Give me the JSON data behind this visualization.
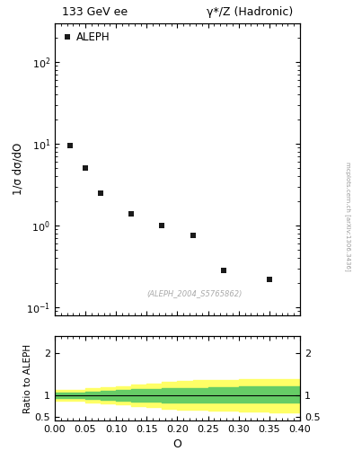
{
  "title_left": "133 GeV ee",
  "title_right": "γ*/Z (Hadronic)",
  "xlabel": "O",
  "ylabel_main": "1/σ dσ/dO",
  "ylabel_ratio": "Ratio to ALEPH",
  "watermark": "(ALEPH_2004_S5765862)",
  "side_label": "mcplots.cern.ch [arXiv:1306.3436]",
  "legend_label": "ALEPH",
  "data_x": [
    0.025,
    0.05,
    0.075,
    0.125,
    0.175,
    0.225,
    0.275,
    0.35
  ],
  "data_y": [
    9.5,
    5.0,
    2.5,
    1.4,
    1.0,
    0.75,
    0.28,
    0.22
  ],
  "xlim": [
    0.0,
    0.4
  ],
  "ylim_main": [
    0.08,
    300
  ],
  "ylim_ratio": [
    0.4,
    2.4
  ],
  "green_band_x": [
    0.0,
    0.025,
    0.05,
    0.075,
    0.1,
    0.125,
    0.15,
    0.175,
    0.2,
    0.225,
    0.25,
    0.275,
    0.3,
    0.325,
    0.35,
    0.375,
    0.4
  ],
  "green_band_lo": [
    0.93,
    0.93,
    0.91,
    0.89,
    0.87,
    0.86,
    0.85,
    0.84,
    0.84,
    0.84,
    0.83,
    0.83,
    0.83,
    0.84,
    0.84,
    0.84,
    0.84
  ],
  "green_band_hi": [
    1.07,
    1.07,
    1.09,
    1.11,
    1.13,
    1.14,
    1.15,
    1.16,
    1.17,
    1.18,
    1.19,
    1.2,
    1.21,
    1.21,
    1.21,
    1.21,
    1.21
  ],
  "yellow_band_x": [
    0.0,
    0.025,
    0.05,
    0.075,
    0.1,
    0.125,
    0.15,
    0.175,
    0.2,
    0.225,
    0.25,
    0.275,
    0.3,
    0.325,
    0.35,
    0.375,
    0.4
  ],
  "yellow_band_lo": [
    0.87,
    0.87,
    0.84,
    0.81,
    0.78,
    0.75,
    0.72,
    0.69,
    0.67,
    0.66,
    0.65,
    0.64,
    0.63,
    0.62,
    0.61,
    0.6,
    0.59
  ],
  "yellow_band_hi": [
    1.13,
    1.13,
    1.16,
    1.19,
    1.22,
    1.25,
    1.28,
    1.31,
    1.33,
    1.35,
    1.36,
    1.37,
    1.38,
    1.38,
    1.38,
    1.38,
    1.38
  ],
  "marker_color": "#1a1a1a",
  "green_color": "#66cc66",
  "yellow_color": "#ffff66",
  "bg_color": "#ffffff",
  "frame_color": "#000000"
}
